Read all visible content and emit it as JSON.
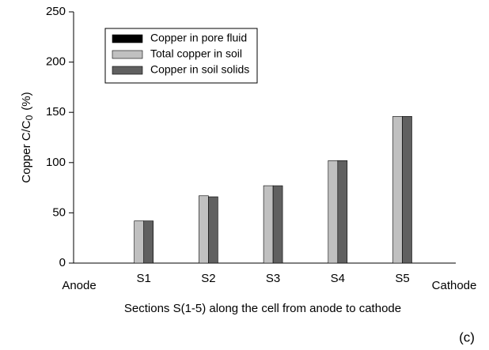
{
  "chart_data": {
    "type": "bar",
    "xlabel": "Sections S(1-5) along the cell from anode to cathode",
    "ylabel": {
      "main": "Copper C/C",
      "sub": "0",
      "unit": "(%)"
    },
    "annotation": "(c)",
    "categories": [
      "Anode",
      "S1",
      "S2",
      "S3",
      "S4",
      "S5",
      "Cathode"
    ],
    "series": [
      {
        "name": "Copper in pore fluid",
        "color": "#000000",
        "values": [
          null,
          0,
          0,
          0,
          0,
          0,
          null
        ]
      },
      {
        "name": "Total copper in soil",
        "color": "#c0c0c0",
        "values": [
          null,
          42,
          67,
          77,
          102,
          146,
          null
        ]
      },
      {
        "name": "Copper in soil solids",
        "color": "#606060",
        "values": [
          null,
          42,
          66,
          77,
          102,
          146,
          null
        ]
      }
    ],
    "ylim": [
      0,
      250
    ],
    "yticks": [
      0,
      50,
      100,
      150,
      200,
      250
    ],
    "grid": false,
    "legend": "upper left"
  }
}
